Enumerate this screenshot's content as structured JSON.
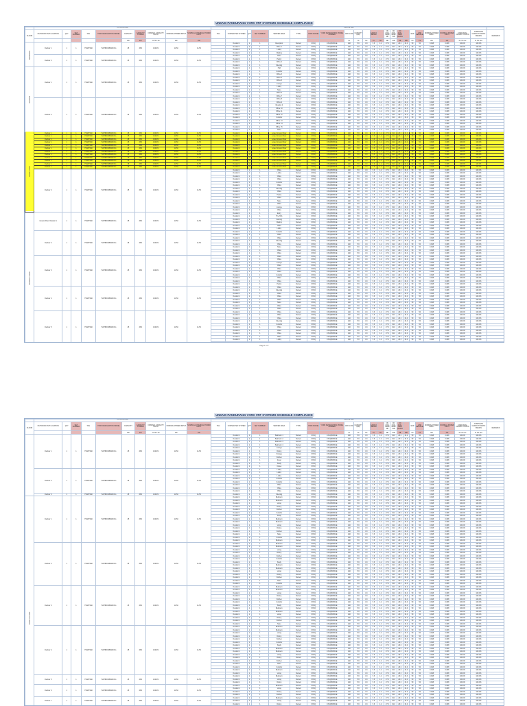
{
  "title": "UNSAID PANDURANG YORK VRF SYSTEMS SCHEDULE COMPLIANCE",
  "header": {
    "floor": "FLOOR",
    "outdoor_group": "OUTDOOR UNIT",
    "indoor_group": "INDOOR UNIT",
    "remarks": "REMARKS",
    "outdoor_cols": [
      {
        "label": "OUTDOOR UNIT LOCATION",
        "unit": "",
        "pink": false
      },
      {
        "label": "QTY",
        "unit": "",
        "pink": false
      },
      {
        "label": "SET NUMBER",
        "unit": "",
        "pink": true
      },
      {
        "label": "TAG",
        "unit": "",
        "pink": false
      },
      {
        "label": "YORK DESIGNATION MODEL",
        "unit": "",
        "pink": true
      },
      {
        "label": "CAPACITY",
        "unit": "kW",
        "pink": false
      },
      {
        "label": "CAPACITY STORED",
        "unit": "kW",
        "pink": true
      },
      {
        "label": "NOMINAL CAPACITY RATIO",
        "unit": "% TR / kw",
        "pink": false
      },
      {
        "label": "NOMINAL POWER INPUT",
        "unit": "kW",
        "pink": false
      },
      {
        "label": "NOMINAL EXTERNAL POWER INPUT",
        "unit": "kW",
        "pink": true
      }
    ],
    "indoor_cols": [
      {
        "label": "TAG",
        "unit": "",
        "pink": false
      },
      {
        "label": "CONNECTED SYSTEM",
        "unit": "",
        "pink": false
      },
      {
        "label": "QTY",
        "unit": "",
        "pink": false
      },
      {
        "label": "SET NUMBER",
        "unit": "",
        "pink": true
      },
      {
        "label": "SERVED AREA",
        "unit": "",
        "pink": false
      },
      {
        "label": "TYPE",
        "unit": "",
        "pink": false
      },
      {
        "label": "YORK MODEL",
        "unit": "",
        "pink": true
      },
      {
        "label": "YORK DESIGNATION MODEL NUMBER",
        "unit": "",
        "pink": true
      },
      {
        "label": "AIR FLOW",
        "unit": "l/s",
        "pink": false
      },
      {
        "label": "CAPACITY (kW)",
        "unit": "TC",
        "pink": false
      },
      {
        "label": "",
        "unit": "SC",
        "pink": false
      },
      {
        "label": "CAPACITY (DESIGNED)",
        "unit": "TC",
        "pink": true
      },
      {
        "label": "",
        "unit": "SC",
        "pink": true
      },
      {
        "label": "ON COIL TEMP DB",
        "unit": "DB",
        "pink": false
      },
      {
        "label": "ON COIL TEMP WB",
        "unit": "WB",
        "pink": false
      },
      {
        "label": "ON COIL TEMP (DESIGNED)",
        "unit": "DB",
        "pink": true
      },
      {
        "label": "",
        "unit": "WB",
        "pink": true
      },
      {
        "label": "ESP",
        "unit": "Pa",
        "pink": false
      },
      {
        "label": "ESP DESIGNED",
        "unit": "Pa",
        "pink": true
      },
      {
        "label": "NOMINAL POWER INPUT",
        "unit": "kW",
        "pink": false
      },
      {
        "label": "NOMINAL POWER INPUT",
        "unit": "kW",
        "pink": true
      },
      {
        "label": "COEF REAL CAPACITY RATIO",
        "unit": "% TR / kw",
        "pink": false
      },
      {
        "label": "COMPLETE CAPACITY RATIO DESIGN",
        "unit": "% TR / kw",
        "pink": false
      }
    ],
    "idu_values": [
      "",
      "Outdoor 1",
      "1",
      "1",
      "",
      "Ducted",
      "FXSQ",
      "FXSQ50PAVE",
      "140",
      "5.6",
      "4.3",
      "5.6",
      "4.2",
      "27.0",
      "19.0",
      "26.0",
      "18.0",
      "50",
      "50",
      "0.098",
      "0.098",
      "100.0%",
      "100.0%"
    ],
    "odu_values": [
      "Outdoor 1",
      "1",
      "1",
      "YVAHP160",
      "YVAHP160B31M/S-1",
      "45",
      "45.0",
      "100.0%",
      "11.50",
      "11.50"
    ]
  },
  "pages": [
    {
      "footer": "Page 1 of 7",
      "floors": [
        {
          "name": "BASEMENT",
          "groups": [
            {
              "odu": "Outdoor 1",
              "idu": [
                "Reception",
                "Office 1",
                "Lobby",
                "Waiting"
              ]
            },
            {
              "odu": "Outdoor 2",
              "idu": [
                "Store",
                "Pantry",
                "Office 2",
                "Meeting"
              ]
            }
          ]
        },
        {
          "name": "GROUND",
          "groups": [
            {
              "odu": "Outdoor 1",
              "idu": [
                "Hall",
                "Corridor",
                "Office 3",
                "Office 4",
                "Office 5",
                "Lounge",
                "Lobby",
                "Store",
                "Office 6",
                "Office 7"
              ]
            },
            {
              "odu": "Outdoor 2",
              "idu": [
                "Office 8",
                "Office 9",
                "Meeting 2",
                "Office 10",
                "Office 11",
                "Office 12",
                "Corridor",
                "Office 13",
                "Office 14",
                "Office 15",
                "Store"
              ]
            }
          ]
        },
        {
          "name": "FIRST FLOOR",
          "groups": [
            {
              "odu": "Outdoor 1",
              "hl": true,
              "idu": [
                "Lower Ground Floor"
              ]
            },
            {
              "odu": "Outdoor 1",
              "hl": true,
              "idu": [
                "Lower Ground Floor"
              ]
            },
            {
              "odu": "Outdoor 1",
              "hl": true,
              "idu": [
                "Lower Ground Floor"
              ]
            },
            {
              "odu": "Outdoor 1",
              "hl": true,
              "idu": [
                "Lower Ground Floor"
              ]
            },
            {
              "odu": "Outdoor 1",
              "hl": true,
              "idu": [
                "Lower Ground Floor"
              ]
            },
            {
              "odu": "Outdoor 1",
              "hl": true,
              "idu": [
                "Lower Ground Floor"
              ]
            },
            {
              "odu": "Outdoor 1",
              "hl": true,
              "idu": [
                "Lower Ground Floor"
              ]
            },
            {
              "odu": "Outdoor 1",
              "hl": true,
              "idu": [
                "Lower Ground Floor"
              ]
            },
            {
              "odu": "Outdoor 1",
              "hl": true,
              "idu": [
                "Lower Ground Floor"
              ]
            },
            {
              "odu": "Outdoor 1",
              "hl": true,
              "idu": [
                "Lower Ground Floor"
              ]
            },
            {
              "odu": "Outdoor 1",
              "hl": true,
              "idu": [
                "Lower Ground Floor"
              ]
            },
            {
              "odu": "Outdoor 1",
              "hl": true,
              "idu": [
                "Lower Ground Floor"
              ]
            },
            {
              "odu": "Outdoor 2",
              "idu": [
                "Office",
                "Lobby",
                "Office",
                "Office",
                "Corridor",
                "Office",
                "Meeting",
                "Office",
                "Pantry",
                "Office",
                "Store",
                "Office",
                "Lounge",
                "Office"
              ]
            }
          ]
        },
        {
          "name": "SECOND FLOOR",
          "groups": [
            {
              "odu": "Ground Floor Outdoor 1",
              "idu": [
                "Entry",
                "The Hub",
                "Gaming",
                "Waiting",
                "Office",
                "Lobby"
              ]
            },
            {
              "odu": "Outdoor 2",
              "idu": [
                "Corridor",
                "Office",
                "Office",
                "Meeting",
                "Office",
                "Store",
                "Office",
                "Office"
              ]
            },
            {
              "odu": "Outdoor 3",
              "idu": [
                "Office",
                "Office",
                "Lounge",
                "Office",
                "Office",
                "Office",
                "Corridor",
                "Office",
                "Office",
                "Pantry"
              ]
            },
            {
              "odu": "Outdoor 4",
              "idu": [
                "Office",
                "Meeting",
                "Office",
                "Office",
                "Office",
                "Store",
                "Office",
                "Office"
              ]
            },
            {
              "odu": "Outdoor 5",
              "idu": [
                "Office",
                "Office",
                "Office",
                "Meeting",
                "Corridor",
                "Office",
                "Office",
                "Office",
                "Office",
                "Lobby",
                "Office"
              ]
            }
          ]
        },
        {
          "name": "THIRD FLOOR",
          "groups": [
            {
              "odu": "Outdoor 1",
              "idu": [
                "Bedroom 1",
                "Bedroom 2",
                "Bedroom 3",
                "Bedroom 4",
                "Lounge",
                "Dining",
                "Kitchen",
                "Study",
                "Storage",
                "Foyer",
                "Bedroom 5",
                "Bedroom 6"
              ]
            },
            {
              "odu": "Outdoor 2",
              "idu": [
                "Bedroom 1",
                "Bedroom 2",
                "Bedroom 3",
                "Bedroom 4",
                "Lounge",
                "Dining",
                "Kitchen",
                "Study",
                "Storage",
                "Foyer"
              ]
            },
            {
              "odu": "Outdoor 3",
              "idu": [
                "Bedroom 1",
                "Bedroom 2",
                "Bedroom 3",
                "Bedroom 4",
                "Lounge",
                "Dining",
                "Kitchen",
                "Study",
                "Storage",
                "Foyer",
                "Bedroom 5"
              ]
            }
          ]
        }
      ]
    },
    {
      "footer": "",
      "floors": [
        {
          "name": "",
          "groups": [
            {
              "odu": "Outdoor 1",
              "idu": [
                "Bedroom 1",
                "Bedroom 2",
                "Bedroom 3",
                "Bedroom 4",
                "Lounge",
                "Dining",
                "Storage",
                "Kitchen",
                "Foyer",
                "Study",
                "Closet"
              ]
            },
            {
              "odu": "Outdoor 2",
              "idu": [
                "Lobby",
                "Lobby",
                "Lobby",
                "Corridor",
                "Corridor",
                "Office",
                "Office",
                "Office"
              ]
            },
            {
              "odu": "Outdoor 3",
              "idu": [
                "Meeting"
              ]
            }
          ]
        },
        {
          "name": "FOURTH FLOOR",
          "groups": [
            {
              "odu": "Outdoor 1",
              "idu": [
                "Bedroom",
                "Bedroom",
                "Living",
                "Dining",
                "Kitchen",
                "Corridor",
                "Study",
                "Bedroom",
                "Bedroom",
                "Living",
                "Dining",
                "Kitchen",
                "Store",
                "Corridor",
                "Bedroom"
              ]
            },
            {
              "odu": "Outdoor 2",
              "idu": [
                "Bedroom",
                "Bedroom",
                "Living",
                "Dining",
                "Kitchen",
                "Corridor",
                "Study",
                "Bedroom",
                "Bedroom",
                "Living",
                "Dining",
                "Kitchen",
                "Store",
                "Corridor"
              ]
            },
            {
              "odu": "Outdoor 3",
              "idu": [
                "Bedroom",
                "Bedroom",
                "Living",
                "Dining",
                "Kitchen",
                "Corridor",
                "Study",
                "Bedroom",
                "Bedroom",
                "Living",
                "Dining",
                "Kitchen",
                "Store"
              ]
            },
            {
              "odu": "Outdoor 4",
              "idu": [
                "Bedroom",
                "Bedroom",
                "Living",
                "Dining",
                "Kitchen",
                "Corridor",
                "Study",
                "Bedroom",
                "Bedroom",
                "Living",
                "Dining",
                "Kitchen",
                "Store",
                "Corridor",
                "Bedroom",
                "Living"
              ]
            },
            {
              "odu": "Outdoor 5",
              "idu": [
                "Bedroom",
                "Living",
                "Dining"
              ]
            },
            {
              "odu": "Outdoor 6",
              "idu": [
                "Bedroom",
                "Living",
                "Dining",
                "Kitchen"
              ]
            },
            {
              "odu": "Outdoor 7",
              "idu": [
                "Bedroom",
                "Living",
                "Dining"
              ]
            },
            {
              "odu": "Outdoor 8",
              "idu": [
                "Bedroom",
                "Living",
                "Dining",
                "Kitchen"
              ]
            },
            {
              "odu": "Outdoor 9",
              "idu": [
                "Bedroom",
                "Living",
                "Dining"
              ]
            },
            {
              "odu": "Outdoor 10",
              "idu": [
                "Bedroom",
                "Living",
                "Dining",
                "Kitchen"
              ]
            }
          ]
        }
      ]
    }
  ]
}
